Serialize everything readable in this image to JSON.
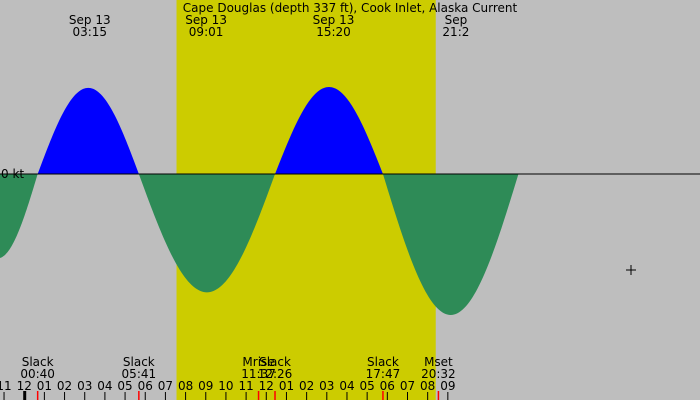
{
  "chart_data": {
    "type": "area",
    "title": "Cape Douglas (depth 337 ft), Cook Inlet, Alaska Current",
    "zero_label": "0 kt",
    "colors": {
      "night": "#bebebe",
      "day": "#cccc00",
      "flood": "#0000ff",
      "ebb": "#2e8b57",
      "marker_red": "#ff0000",
      "marker_black": "#000000"
    },
    "x_range_hours": [
      -1.2,
      33.5
    ],
    "daylight_hours": [
      7.55,
      20.4
    ],
    "peaks": [
      {
        "date": "Sep 13",
        "time": "03:15",
        "hour": 3.25
      },
      {
        "date": "Sep 13",
        "time": "09:01",
        "hour": 9.017
      },
      {
        "date": "Sep 13",
        "time": "15:20",
        "hour": 15.333
      },
      {
        "date": "Sep",
        "time": "21:2",
        "hour": 21.4
      }
    ],
    "events": [
      {
        "label": "Slack",
        "time": "00:40",
        "hour": 0.667
      },
      {
        "label": "Slack",
        "time": "05:41",
        "hour": 5.683
      },
      {
        "label": "Mrise",
        "time": "11:37",
        "hour": 11.617
      },
      {
        "label": "Slack",
        "time": "12:26",
        "hour": 12.433
      },
      {
        "label": "Slack",
        "time": "17:47",
        "hour": 17.783
      },
      {
        "label": "Mset",
        "time": "20:32",
        "hour": 20.533
      }
    ],
    "curve_segments": [
      {
        "start": -3.3,
        "end": 0.667,
        "amp": 0.97,
        "sign": -1
      },
      {
        "start": 0.667,
        "end": 5.683,
        "amp": 0.99,
        "sign": 1
      },
      {
        "start": 5.683,
        "end": 12.433,
        "amp": 1.36,
        "sign": -1
      },
      {
        "start": 12.433,
        "end": 17.783,
        "amp": 1.0,
        "sign": 1
      },
      {
        "start": 17.783,
        "end": 24.5,
        "amp": 1.62,
        "sign": -1
      }
    ],
    "ticks": [
      {
        "label": "11",
        "hour": -1
      },
      {
        "label": "12",
        "hour": 0
      },
      {
        "label": "01",
        "hour": 1
      },
      {
        "label": "02",
        "hour": 2
      },
      {
        "label": "03",
        "hour": 3
      },
      {
        "label": "04",
        "hour": 4
      },
      {
        "label": "05",
        "hour": 5
      },
      {
        "label": "06",
        "hour": 6
      },
      {
        "label": "07",
        "hour": 7
      },
      {
        "label": "08",
        "hour": 8
      },
      {
        "label": "09",
        "hour": 9
      },
      {
        "label": "10",
        "hour": 10
      },
      {
        "label": "11",
        "hour": 11
      },
      {
        "label": "12",
        "hour": 12
      },
      {
        "label": "01",
        "hour": 13
      },
      {
        "label": "02",
        "hour": 14
      },
      {
        "label": "03",
        "hour": 15
      },
      {
        "label": "04",
        "hour": 16
      },
      {
        "label": "05",
        "hour": 17
      },
      {
        "label": "06",
        "hour": 18
      },
      {
        "label": "07",
        "hour": 19
      },
      {
        "label": "08",
        "hour": 20
      },
      {
        "label": "09",
        "hour": 21
      }
    ]
  }
}
